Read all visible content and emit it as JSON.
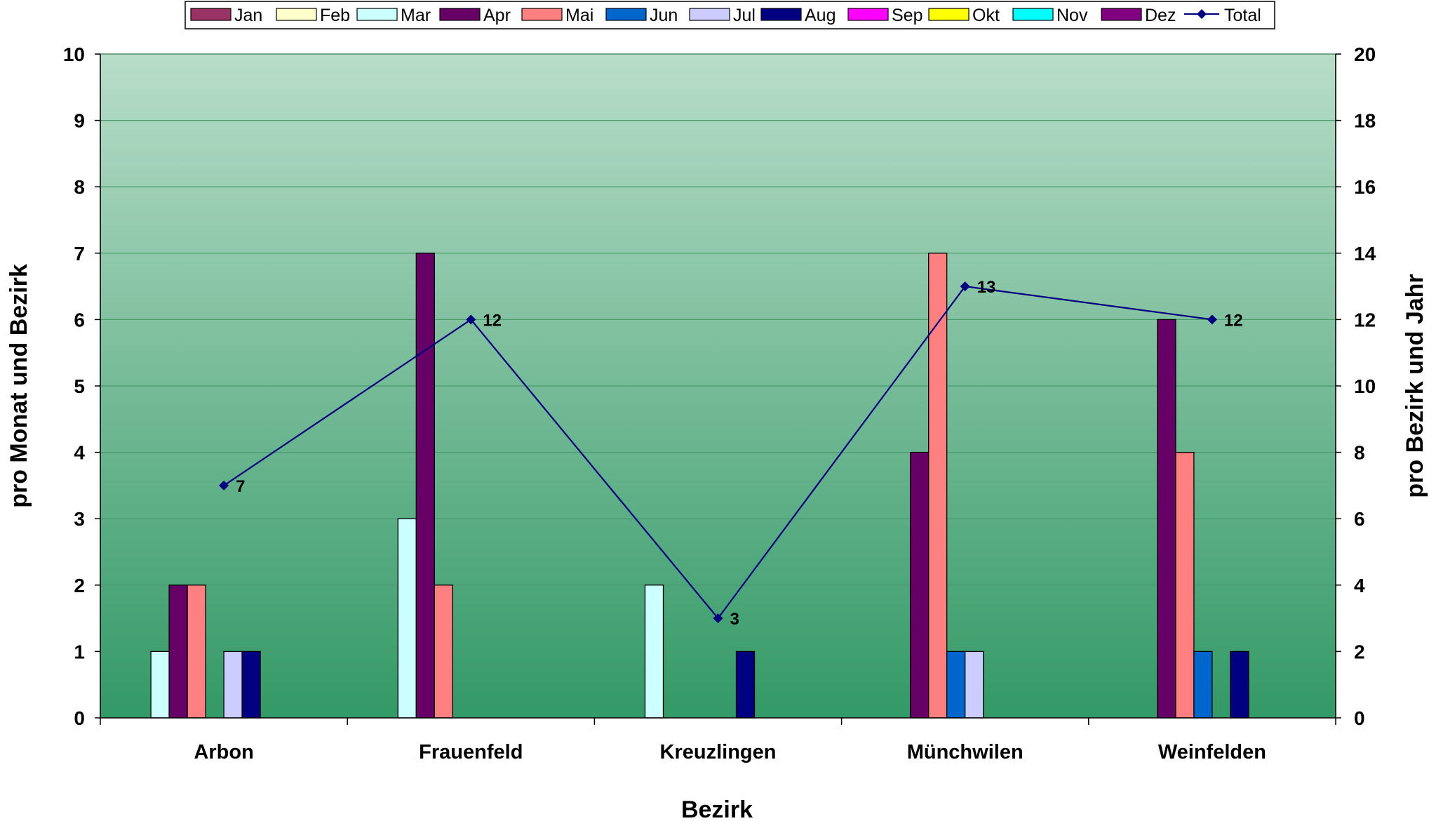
{
  "chart_data": {
    "type": "bar",
    "categories": [
      "Arbon",
      "Frauenfeld",
      "Kreuzlingen",
      "Münchwilen",
      "Weinfelden"
    ],
    "series": [
      {
        "name": "Jan",
        "color": "#993366",
        "values": [
          0,
          0,
          0,
          0,
          0
        ]
      },
      {
        "name": "Feb",
        "color": "#FFFFCC",
        "values": [
          0,
          0,
          0,
          0,
          0
        ]
      },
      {
        "name": "Mar",
        "color": "#CCFFFF",
        "values": [
          1,
          3,
          2,
          0,
          0
        ]
      },
      {
        "name": "Apr",
        "color": "#660066",
        "values": [
          2,
          7,
          0,
          4,
          6
        ]
      },
      {
        "name": "Mai",
        "color": "#FF8080",
        "values": [
          2,
          2,
          0,
          7,
          4
        ]
      },
      {
        "name": "Jun",
        "color": "#0066CC",
        "values": [
          0,
          0,
          0,
          1,
          1
        ]
      },
      {
        "name": "Jul",
        "color": "#CCCCFF",
        "values": [
          1,
          0,
          0,
          1,
          0
        ]
      },
      {
        "name": "Aug",
        "color": "#000080",
        "values": [
          1,
          0,
          1,
          0,
          1
        ]
      },
      {
        "name": "Sep",
        "color": "#FF00FF",
        "values": [
          0,
          0,
          0,
          0,
          0
        ]
      },
      {
        "name": "Okt",
        "color": "#FFFF00",
        "values": [
          0,
          0,
          0,
          0,
          0
        ]
      },
      {
        "name": "Nov",
        "color": "#00FFFF",
        "values": [
          0,
          0,
          0,
          0,
          0
        ]
      },
      {
        "name": "Dez",
        "color": "#800080",
        "values": [
          0,
          0,
          0,
          0,
          0
        ]
      }
    ],
    "total": {
      "name": "Total",
      "color": "#000080",
      "axis": "right",
      "values": [
        7,
        12,
        3,
        13,
        12
      ]
    },
    "xlabel": "Bezirk",
    "ylabel": "pro Monat und Bezirk",
    "y2label": "pro Bezirk und Jahr",
    "ylim": [
      0,
      10
    ],
    "y2lim": [
      0,
      20
    ],
    "yticks": [
      0,
      1,
      2,
      3,
      4,
      5,
      6,
      7,
      8,
      9,
      10
    ],
    "y2ticks": [
      0,
      2,
      4,
      6,
      8,
      10,
      12,
      14,
      16,
      18,
      20
    ],
    "grid": true,
    "legend": "top",
    "background_gradient": [
      "#b8ddc9",
      "#339966"
    ]
  }
}
